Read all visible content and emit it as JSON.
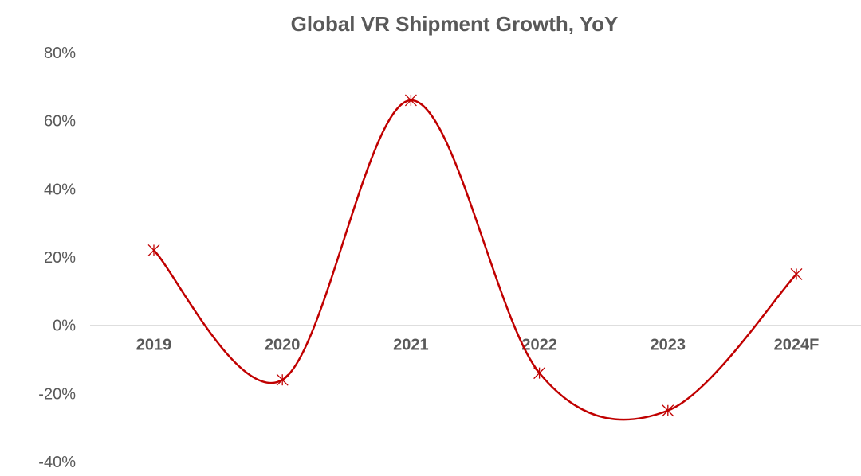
{
  "chart_data": {
    "type": "line",
    "title": "Global VR Shipment Growth, YoY",
    "categories": [
      "2019",
      "2020",
      "2021",
      "2022",
      "2023",
      "2024F"
    ],
    "series": [
      {
        "values": [
          22,
          -16,
          66,
          -14,
          -25,
          15
        ]
      }
    ],
    "ylim": [
      -40,
      80
    ],
    "yticks": [
      80,
      60,
      40,
      20,
      0,
      -20,
      -40
    ],
    "ytick_labels": [
      "80%",
      "60%",
      "40%",
      "20%",
      "0%",
      "-20%",
      "-40%"
    ],
    "grid": false,
    "legend": "none",
    "smooth": true,
    "marker": "asterisk",
    "colors": {
      "line": "#c00000",
      "text": "#595959",
      "axis": "#d9d9d9"
    }
  }
}
